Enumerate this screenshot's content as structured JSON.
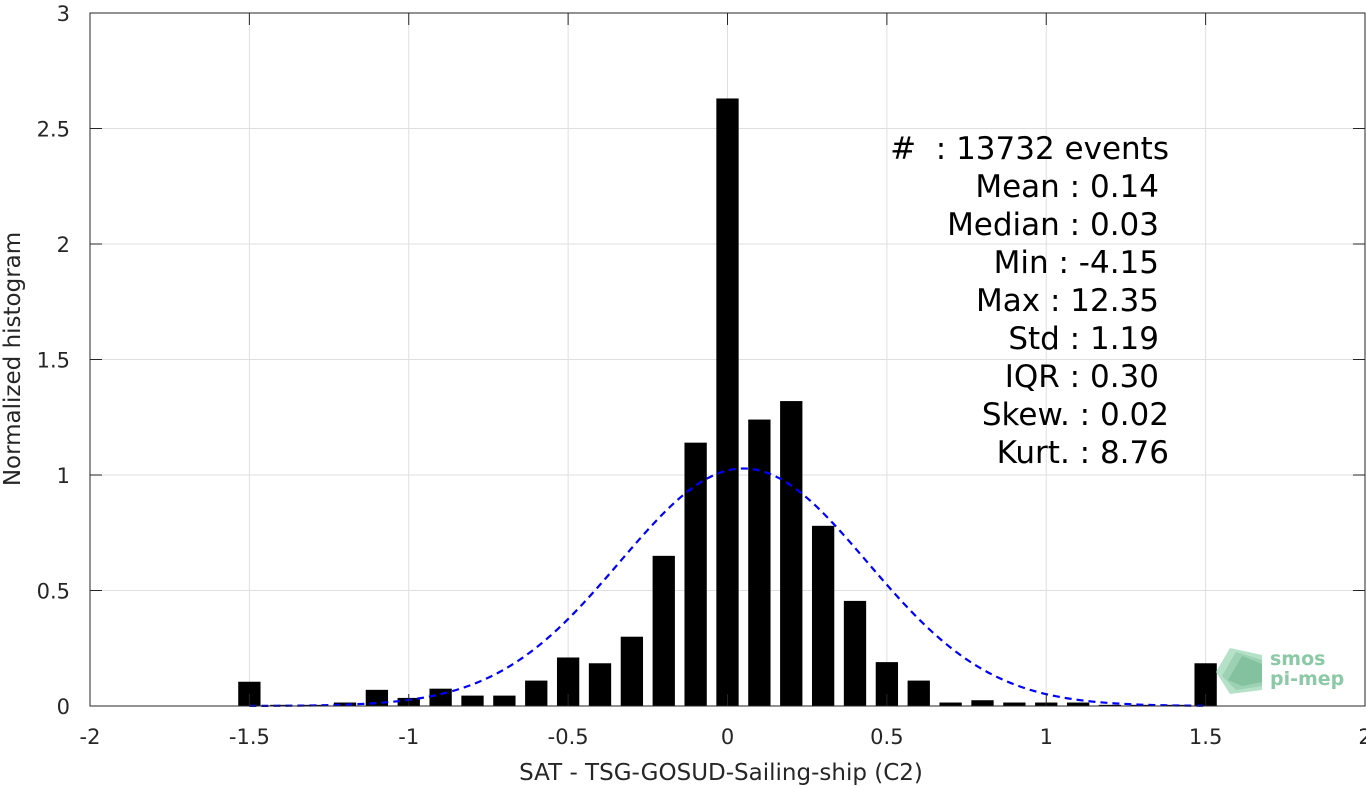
{
  "chart_data": {
    "type": "bar",
    "xlabel": "SAT - TSG-GOSUD-Sailing-ship (C2)",
    "ylabel": "Normalized histogram",
    "xlim": [
      -2,
      2
    ],
    "ylim": [
      0,
      3
    ],
    "xticks": [
      -2,
      -1.5,
      -1,
      -0.5,
      0,
      0.5,
      1,
      1.5,
      2
    ],
    "xtick_labels": [
      "-2",
      "-1.5",
      "-1",
      "-0.5",
      "0",
      "0.5",
      "1",
      "1.5",
      "2"
    ],
    "yticks": [
      0,
      0.5,
      1,
      1.5,
      2,
      2.5,
      3
    ],
    "ytick_labels": [
      "0",
      "0.5",
      "1",
      "1.5",
      "2",
      "2.5",
      "3"
    ],
    "grid": true,
    "bar_width": 0.07,
    "x": [
      -1.5,
      -1.4,
      -1.3,
      -1.2,
      -1.1,
      -1.0,
      -0.9,
      -0.8,
      -0.7,
      -0.6,
      -0.5,
      -0.4,
      -0.3,
      -0.2,
      -0.1,
      0.0,
      0.1,
      0.2,
      0.3,
      0.4,
      0.5,
      0.6,
      0.7,
      0.8,
      0.9,
      1.0,
      1.1,
      1.2,
      1.3,
      1.4,
      1.5
    ],
    "values": [
      0.105,
      0.005,
      0.005,
      0.015,
      0.07,
      0.035,
      0.075,
      0.045,
      0.045,
      0.11,
      0.21,
      0.185,
      0.3,
      0.65,
      1.14,
      2.63,
      1.24,
      1.32,
      0.78,
      0.455,
      0.19,
      0.11,
      0.015,
      0.025,
      0.015,
      0.015,
      0.015,
      0.005,
      0.005,
      0.005,
      0.185
    ],
    "bar_color": "#000000",
    "fit_curve": {
      "style": "dashed",
      "color": "#0000ff",
      "mean": 0.05,
      "std": 0.388
    },
    "annotations": [
      "#  : 13732 events",
      "Mean : 0.14",
      "Median : 0.03",
      "Min : -4.15",
      "Max : 12.35",
      "Std : 1.19",
      "IQR : 0.30",
      "Skew. : 0.02",
      "Kurt. : 8.76"
    ]
  },
  "logo": {
    "line1": "smos",
    "line2": "pi-mep",
    "color": "#8cc9a6"
  }
}
